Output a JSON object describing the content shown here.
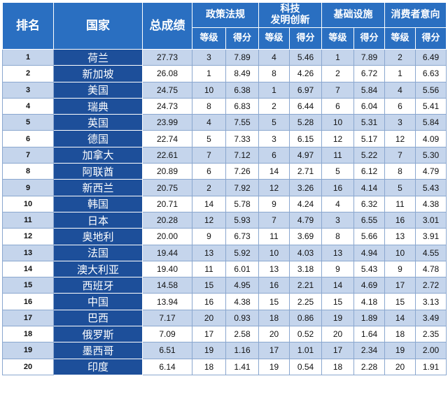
{
  "headers": {
    "rank": "排名",
    "country": "国家",
    "total": "总成绩",
    "policy": "政策法规",
    "tech_line1": "科技",
    "tech_line2": "发明创新",
    "infra": "基础设施",
    "consumer": "消费者意向",
    "grade": "等级",
    "score": "得分"
  },
  "rows": [
    {
      "rank": "1",
      "country": "荷兰",
      "total": "27.73",
      "p_grade": "3",
      "p_score": "7.89",
      "t_grade": "4",
      "t_score": "5.46",
      "i_grade": "1",
      "i_score": "7.89",
      "c_grade": "2",
      "c_score": "6.49"
    },
    {
      "rank": "2",
      "country": "新加坡",
      "total": "26.08",
      "p_grade": "1",
      "p_score": "8.49",
      "t_grade": "8",
      "t_score": "4.26",
      "i_grade": "2",
      "i_score": "6.72",
      "c_grade": "1",
      "c_score": "6.63"
    },
    {
      "rank": "3",
      "country": "美国",
      "total": "24.75",
      "p_grade": "10",
      "p_score": "6.38",
      "t_grade": "1",
      "t_score": "6.97",
      "i_grade": "7",
      "i_score": "5.84",
      "c_grade": "4",
      "c_score": "5.56"
    },
    {
      "rank": "4",
      "country": "瑞典",
      "total": "24.73",
      "p_grade": "8",
      "p_score": "6.83",
      "t_grade": "2",
      "t_score": "6.44",
      "i_grade": "6",
      "i_score": "6.04",
      "c_grade": "6",
      "c_score": "5.41"
    },
    {
      "rank": "5",
      "country": "英国",
      "total": "23.99",
      "p_grade": "4",
      "p_score": "7.55",
      "t_grade": "5",
      "t_score": "5.28",
      "i_grade": "10",
      "i_score": "5.31",
      "c_grade": "3",
      "c_score": "5.84"
    },
    {
      "rank": "6",
      "country": "德国",
      "total": "22.74",
      "p_grade": "5",
      "p_score": "7.33",
      "t_grade": "3",
      "t_score": "6.15",
      "i_grade": "12",
      "i_score": "5.17",
      "c_grade": "12",
      "c_score": "4.09"
    },
    {
      "rank": "7",
      "country": "加拿大",
      "total": "22.61",
      "p_grade": "7",
      "p_score": "7.12",
      "t_grade": "6",
      "t_score": "4.97",
      "i_grade": "11",
      "i_score": "5.22",
      "c_grade": "7",
      "c_score": "5.30"
    },
    {
      "rank": "8",
      "country": "阿联酋",
      "total": "20.89",
      "p_grade": "6",
      "p_score": "7.26",
      "t_grade": "14",
      "t_score": "2.71",
      "i_grade": "5",
      "i_score": "6.12",
      "c_grade": "8",
      "c_score": "4.79"
    },
    {
      "rank": "9",
      "country": "新西兰",
      "total": "20.75",
      "p_grade": "2",
      "p_score": "7.92",
      "t_grade": "12",
      "t_score": "3.26",
      "i_grade": "16",
      "i_score": "4.14",
      "c_grade": "5",
      "c_score": "5.43"
    },
    {
      "rank": "10",
      "country": "韩国",
      "total": "20.71",
      "p_grade": "14",
      "p_score": "5.78",
      "t_grade": "9",
      "t_score": "4.24",
      "i_grade": "4",
      "i_score": "6.32",
      "c_grade": "11",
      "c_score": "4.38"
    },
    {
      "rank": "11",
      "country": "日本",
      "total": "20.28",
      "p_grade": "12",
      "p_score": "5.93",
      "t_grade": "7",
      "t_score": "4.79",
      "i_grade": "3",
      "i_score": "6.55",
      "c_grade": "16",
      "c_score": "3.01"
    },
    {
      "rank": "12",
      "country": "奥地利",
      "total": "20.00",
      "p_grade": "9",
      "p_score": "6.73",
      "t_grade": "11",
      "t_score": "3.69",
      "i_grade": "8",
      "i_score": "5.66",
      "c_grade": "13",
      "c_score": "3.91"
    },
    {
      "rank": "13",
      "country": "法国",
      "total": "19.44",
      "p_grade": "13",
      "p_score": "5.92",
      "t_grade": "10",
      "t_score": "4.03",
      "i_grade": "13",
      "i_score": "4.94",
      "c_grade": "10",
      "c_score": "4.55"
    },
    {
      "rank": "14",
      "country": "澳大利亚",
      "total": "19.40",
      "p_grade": "11",
      "p_score": "6.01",
      "t_grade": "13",
      "t_score": "3.18",
      "i_grade": "9",
      "i_score": "5.43",
      "c_grade": "9",
      "c_score": "4.78"
    },
    {
      "rank": "15",
      "country": "西班牙",
      "total": "14.58",
      "p_grade": "15",
      "p_score": "4.95",
      "t_grade": "16",
      "t_score": "2.21",
      "i_grade": "14",
      "i_score": "4.69",
      "c_grade": "17",
      "c_score": "2.72"
    },
    {
      "rank": "16",
      "country": "中国",
      "total": "13.94",
      "p_grade": "16",
      "p_score": "4.38",
      "t_grade": "15",
      "t_score": "2.25",
      "i_grade": "15",
      "i_score": "4.18",
      "c_grade": "15",
      "c_score": "3.13"
    },
    {
      "rank": "17",
      "country": "巴西",
      "total": "7.17",
      "p_grade": "20",
      "p_score": "0.93",
      "t_grade": "18",
      "t_score": "0.86",
      "i_grade": "19",
      "i_score": "1.89",
      "c_grade": "14",
      "c_score": "3.49"
    },
    {
      "rank": "18",
      "country": "俄罗斯",
      "total": "7.09",
      "p_grade": "17",
      "p_score": "2.58",
      "t_grade": "20",
      "t_score": "0.52",
      "i_grade": "20",
      "i_score": "1.64",
      "c_grade": "18",
      "c_score": "2.35"
    },
    {
      "rank": "19",
      "country": "墨西哥",
      "total": "6.51",
      "p_grade": "19",
      "p_score": "1.16",
      "t_grade": "17",
      "t_score": "1.01",
      "i_grade": "17",
      "i_score": "2.34",
      "c_grade": "19",
      "c_score": "2.00"
    },
    {
      "rank": "20",
      "country": "印度",
      "total": "6.14",
      "p_grade": "18",
      "p_score": "1.41",
      "t_grade": "19",
      "t_score": "0.54",
      "i_grade": "18",
      "i_score": "2.28",
      "c_grade": "20",
      "c_score": "1.91"
    }
  ]
}
